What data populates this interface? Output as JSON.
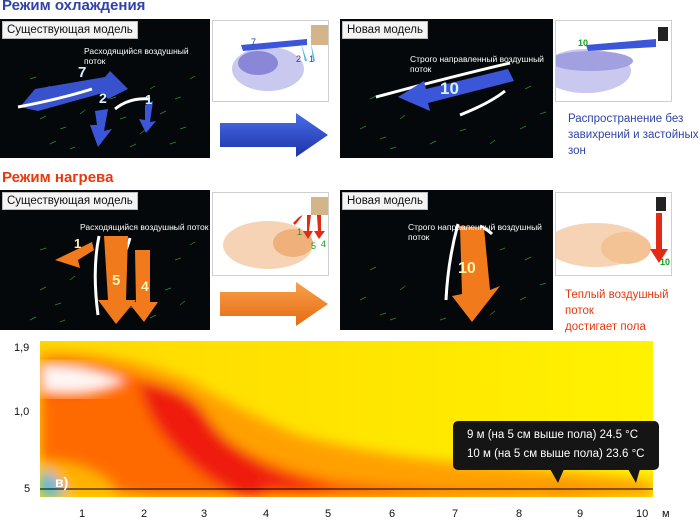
{
  "cooling": {
    "title": "Режим охлаждения",
    "existing": {
      "tag": "Существующая модель",
      "flow_label": "Расходящийся воздушный поток",
      "nums": [
        "7",
        "2",
        "1"
      ]
    },
    "thumb1": {
      "nums": [
        "7",
        "2",
        "1"
      ]
    },
    "new": {
      "tag": "Новая модель",
      "flow_label": "Строго направленный воздушный поток",
      "num": "10"
    },
    "thumb2": {
      "num": "10"
    },
    "note": [
      "Распространение без",
      "завихрений и застойных зон"
    ],
    "color": "#2f43a8"
  },
  "heating": {
    "title": "Режим нагрева",
    "existing": {
      "tag": "Существующая модель",
      "flow_label": "Расходящийся воздушный поток",
      "nums": [
        "1",
        "5",
        "4"
      ]
    },
    "thumb1": {
      "nums": [
        "1",
        "5",
        "4"
      ]
    },
    "new": {
      "tag": "Новая модель",
      "flow_label": "Строго направленный воздушный поток",
      "num": "10"
    },
    "thumb2": {
      "num": "10"
    },
    "note": [
      "Теплый воздушный поток",
      "достигает пола"
    ],
    "color": "#e8380d"
  },
  "heatmap": {
    "panel_letter": "в)",
    "y_labels": [
      "1,9",
      "1,0",
      "5"
    ],
    "x_labels": [
      "1",
      "2",
      "3",
      "4",
      "5",
      "6",
      "7",
      "8",
      "9",
      "10",
      "м"
    ],
    "callout": [
      "9 м (на 5 см выше пола) 24.5 °C",
      "10 м (на 5 см выше пола) 23.6 °C"
    ]
  }
}
